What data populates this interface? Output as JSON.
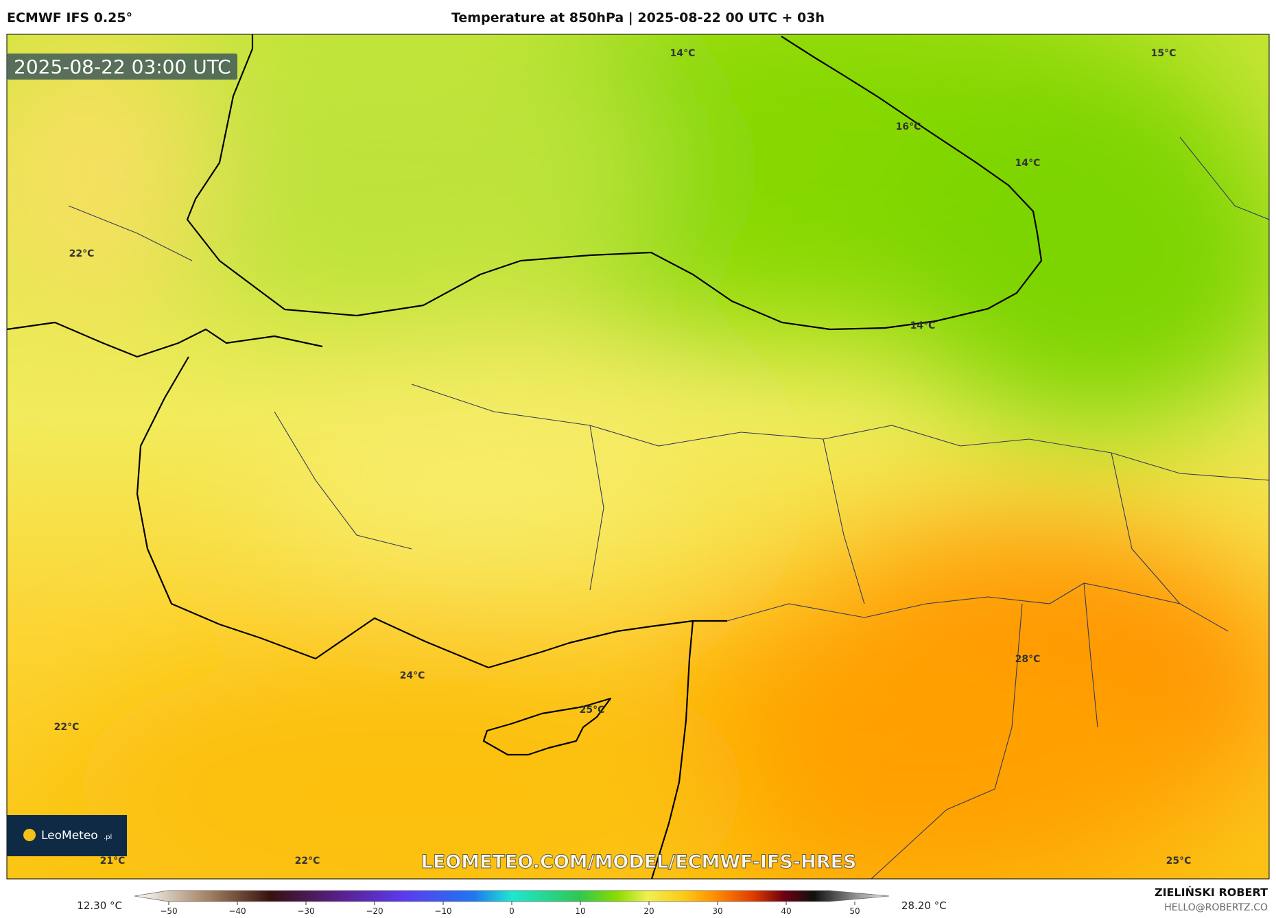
{
  "header": {
    "model": "ECMWF IFS 0.25°",
    "title": "Temperature at 850hPa | 2025-08-22 00 UTC + 03h"
  },
  "map": {
    "timestamp": "2025-08-22 03:00 UTC",
    "labels": [
      "14°C",
      "15°C",
      "16°C",
      "14°C",
      "22°C",
      "14°C",
      "28°C",
      "24°C",
      "25°C",
      "22°C",
      "21°C",
      "22°C",
      "25°C"
    ],
    "logo": "LeoMeteo",
    "logo_suffix": ".pl",
    "watermark": "LEOMETEO.COM/MODEL/ECMWF-IFS-HRES"
  },
  "colorbar": {
    "lim": [
      -55,
      55
    ],
    "ticks": [
      {
        "value": -50,
        "label": "−50"
      },
      {
        "value": -40,
        "label": "−40"
      },
      {
        "value": -30,
        "label": "−30"
      },
      {
        "value": -20,
        "label": "−20"
      },
      {
        "value": -10,
        "label": "−10"
      },
      0,
      10,
      20,
      30,
      40,
      50
    ],
    "min_label": "12.30 °C",
    "max_label": "28.20 °C"
  },
  "footer": {
    "author": "ZIELIŃSKI ROBERT",
    "email": "HELLO@ROBERTZ.CO"
  }
}
